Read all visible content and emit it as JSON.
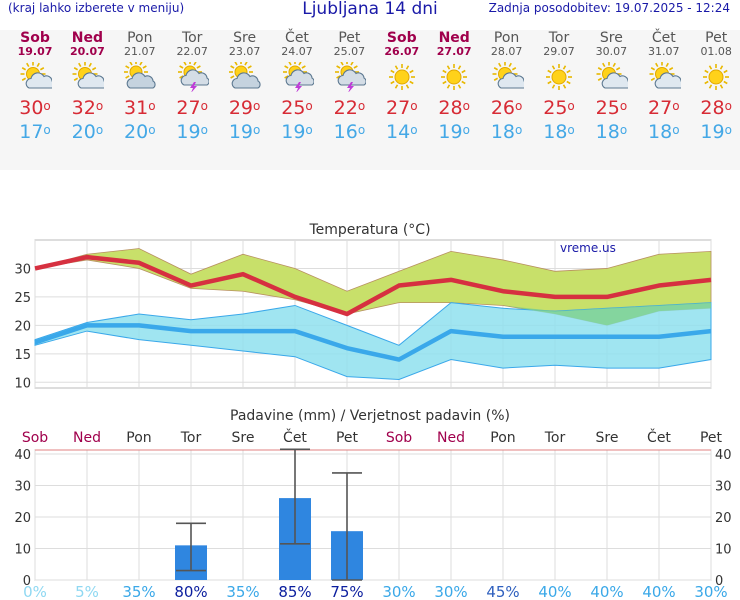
{
  "header": {
    "left_note": "(kraj lahko izberete v meniju)",
    "title": "Ljubljana 14 dni",
    "last_update": "Zadnja posodobitev: 19.07.2025 - 12:24"
  },
  "forecast": [
    {
      "day": "Sob",
      "date": "19.07",
      "weekend": true,
      "icon": "sun-cloud-icon",
      "tmax": "30",
      "tmin": "17"
    },
    {
      "day": "Ned",
      "date": "20.07",
      "weekend": true,
      "icon": "sun-cloud-icon",
      "tmax": "32",
      "tmin": "20"
    },
    {
      "day": "Pon",
      "date": "21.07",
      "weekend": false,
      "icon": "cloud-sun-icon",
      "tmax": "31",
      "tmin": "20"
    },
    {
      "day": "Tor",
      "date": "22.07",
      "weekend": false,
      "icon": "thunderstorm-icon",
      "tmax": "27",
      "tmin": "19"
    },
    {
      "day": "Sre",
      "date": "23.07",
      "weekend": false,
      "icon": "cloud-sun-icon",
      "tmax": "29",
      "tmin": "19"
    },
    {
      "day": "Čet",
      "date": "24.07",
      "weekend": false,
      "icon": "thunderstorm-icon",
      "tmax": "25",
      "tmin": "19"
    },
    {
      "day": "Pet",
      "date": "25.07",
      "weekend": false,
      "icon": "thunderstorm-icon",
      "tmax": "22",
      "tmin": "16"
    },
    {
      "day": "Sob",
      "date": "26.07",
      "weekend": true,
      "icon": "sun-icon",
      "tmax": "27",
      "tmin": "14"
    },
    {
      "day": "Ned",
      "date": "27.07",
      "weekend": true,
      "icon": "sun-icon",
      "tmax": "28",
      "tmin": "19"
    },
    {
      "day": "Pon",
      "date": "28.07",
      "weekend": false,
      "icon": "sun-cloud-icon",
      "tmax": "26",
      "tmin": "18"
    },
    {
      "day": "Tor",
      "date": "29.07",
      "weekend": false,
      "icon": "sun-icon",
      "tmax": "25",
      "tmin": "18"
    },
    {
      "day": "Sre",
      "date": "30.07",
      "weekend": false,
      "icon": "sun-cloud-icon",
      "tmax": "25",
      "tmin": "18"
    },
    {
      "day": "Čet",
      "date": "31.07",
      "weekend": false,
      "icon": "sun-cloud-icon",
      "tmax": "27",
      "tmin": "18"
    },
    {
      "day": "Pet",
      "date": "01.08",
      "weekend": false,
      "icon": "sun-icon",
      "tmax": "28",
      "tmin": "19"
    }
  ],
  "degree_symbol": "o",
  "colors": {
    "max_line": "#d63040",
    "max_band": "#c8e06a",
    "min_line": "#3aa8ea",
    "min_band": "#8fe0ee",
    "overlap_band": "#7ed08a",
    "bar": "#2f86e0",
    "weekend": "#a0004c",
    "axis_text": "#333333"
  },
  "chart_data": [
    {
      "type": "line",
      "title": "Temperatura (°C)",
      "watermark": "vreme.us",
      "ylim": [
        9,
        35
      ],
      "yticks": [
        10,
        15,
        20,
        25,
        30
      ],
      "grid": true,
      "series": [
        {
          "values": [
            30,
            32,
            31,
            27,
            29,
            25,
            22,
            27,
            28,
            26,
            25,
            25,
            27,
            28
          ],
          "band_low": [
            30,
            31.5,
            30,
            26.5,
            26,
            24.5,
            22,
            24,
            24,
            23.5,
            22,
            20,
            22.5,
            23
          ],
          "band_high": [
            30,
            32.5,
            33.5,
            29,
            32.5,
            30,
            26,
            29.5,
            33,
            31.5,
            29.5,
            30,
            32.5,
            33
          ]
        },
        {
          "values": [
            17,
            20,
            20,
            19,
            19,
            19,
            16,
            14,
            19,
            18,
            18,
            18,
            18,
            19
          ],
          "band_low": [
            16.5,
            19,
            17.5,
            16.5,
            15.5,
            14.5,
            11,
            10.5,
            14,
            12.5,
            13,
            12.5,
            12.5,
            14
          ],
          "band_high": [
            17.5,
            20.5,
            22,
            21,
            22,
            23.5,
            20,
            16.5,
            24,
            23,
            22.5,
            23,
            23.5,
            24
          ]
        }
      ]
    },
    {
      "type": "bar",
      "title": "Padavine (mm) / Verjetnost padavin (%)",
      "ylim": [
        0,
        40
      ],
      "yticks": [
        0,
        10,
        20,
        30,
        40
      ],
      "categories": [
        "Sob",
        "Ned",
        "Pon",
        "Tor",
        "Sre",
        "Čet",
        "Pet",
        "Sob",
        "Ned",
        "Pon",
        "Tor",
        "Sre",
        "Čet",
        "Pet"
      ],
      "values": [
        0,
        0,
        0,
        11,
        0,
        26,
        15.5,
        0,
        0,
        0,
        0,
        0,
        0,
        0
      ],
      "err_low": [
        null,
        null,
        null,
        3,
        null,
        11.5,
        0,
        null,
        null,
        null,
        null,
        null,
        null,
        null
      ],
      "err_high": [
        null,
        null,
        null,
        18,
        null,
        41.5,
        34,
        null,
        null,
        null,
        null,
        null,
        null,
        null
      ],
      "probability": [
        "0%",
        "5%",
        "35%",
        "80%",
        "35%",
        "85%",
        "75%",
        "30%",
        "30%",
        "45%",
        "40%",
        "40%",
        "40%",
        "30%"
      ]
    }
  ]
}
